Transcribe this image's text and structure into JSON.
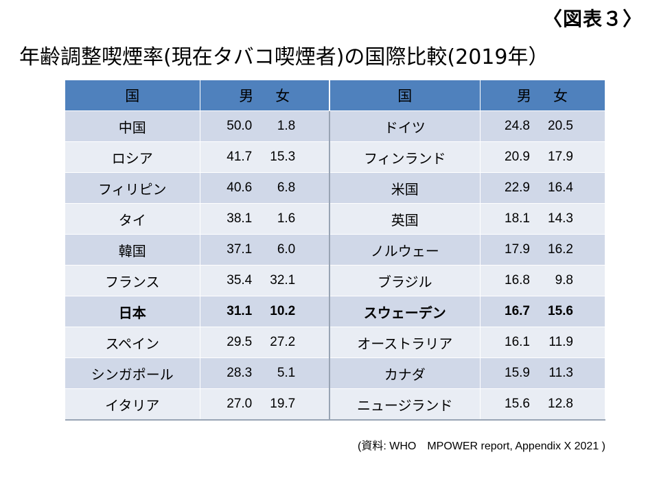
{
  "figure_label": "〈図表３〉",
  "title": "年齢調整喫煙率(現在タバコ喫煙者)の国際比較(2019年）",
  "table": {
    "headers": {
      "country": "国",
      "male": "男",
      "female": "女"
    },
    "rows": [
      {
        "left": {
          "country": "中国",
          "male": "50.0",
          "female": "1.8"
        },
        "right": {
          "country": "ドイツ",
          "male": "24.8",
          "female": "20.5"
        }
      },
      {
        "left": {
          "country": "ロシア",
          "male": "41.7",
          "female": "15.3"
        },
        "right": {
          "country": "フィンランド",
          "male": "20.9",
          "female": "17.9"
        }
      },
      {
        "left": {
          "country": "フィリピン",
          "male": "40.6",
          "female": "6.8"
        },
        "right": {
          "country": "米国",
          "male": "22.9",
          "female": "16.4"
        }
      },
      {
        "left": {
          "country": "タイ",
          "male": "38.1",
          "female": "1.6"
        },
        "right": {
          "country": "英国",
          "male": "18.1",
          "female": "14.3"
        }
      },
      {
        "left": {
          "country": "韓国",
          "male": "37.1",
          "female": "6.0"
        },
        "right": {
          "country": "ノルウェー",
          "male": "17.9",
          "female": "16.2"
        }
      },
      {
        "left": {
          "country": "フランス",
          "male": "35.4",
          "female": "32.1"
        },
        "right": {
          "country": "ブラジル",
          "male": "16.8",
          "female": "9.8"
        }
      },
      {
        "left": {
          "country": "日本",
          "male": "31.1",
          "female": "10.2"
        },
        "right": {
          "country": "スウェーデン",
          "male": "16.7",
          "female": "15.6"
        }
      },
      {
        "left": {
          "country": "スペイン",
          "male": "29.5",
          "female": "27.2"
        },
        "right": {
          "country": "オーストラリア",
          "male": "16.1",
          "female": "11.9"
        }
      },
      {
        "left": {
          "country": "シンガポール",
          "male": "28.3",
          "female": "5.1"
        },
        "right": {
          "country": "カナダ",
          "male": "15.9",
          "female": "11.3"
        }
      },
      {
        "left": {
          "country": "イタリア",
          "male": "27.0",
          "female": "19.7"
        },
        "right": {
          "country": "ニュージランド",
          "male": "15.6",
          "female": "12.8"
        }
      }
    ],
    "highlight_left_country": "日本",
    "colors": {
      "header": "#4f81bd",
      "row_odd": "#d0d8e8",
      "row_even": "#e9edf4"
    }
  },
  "source": "(資料: WHO　MPOWER report, Appendix X 2021 )"
}
